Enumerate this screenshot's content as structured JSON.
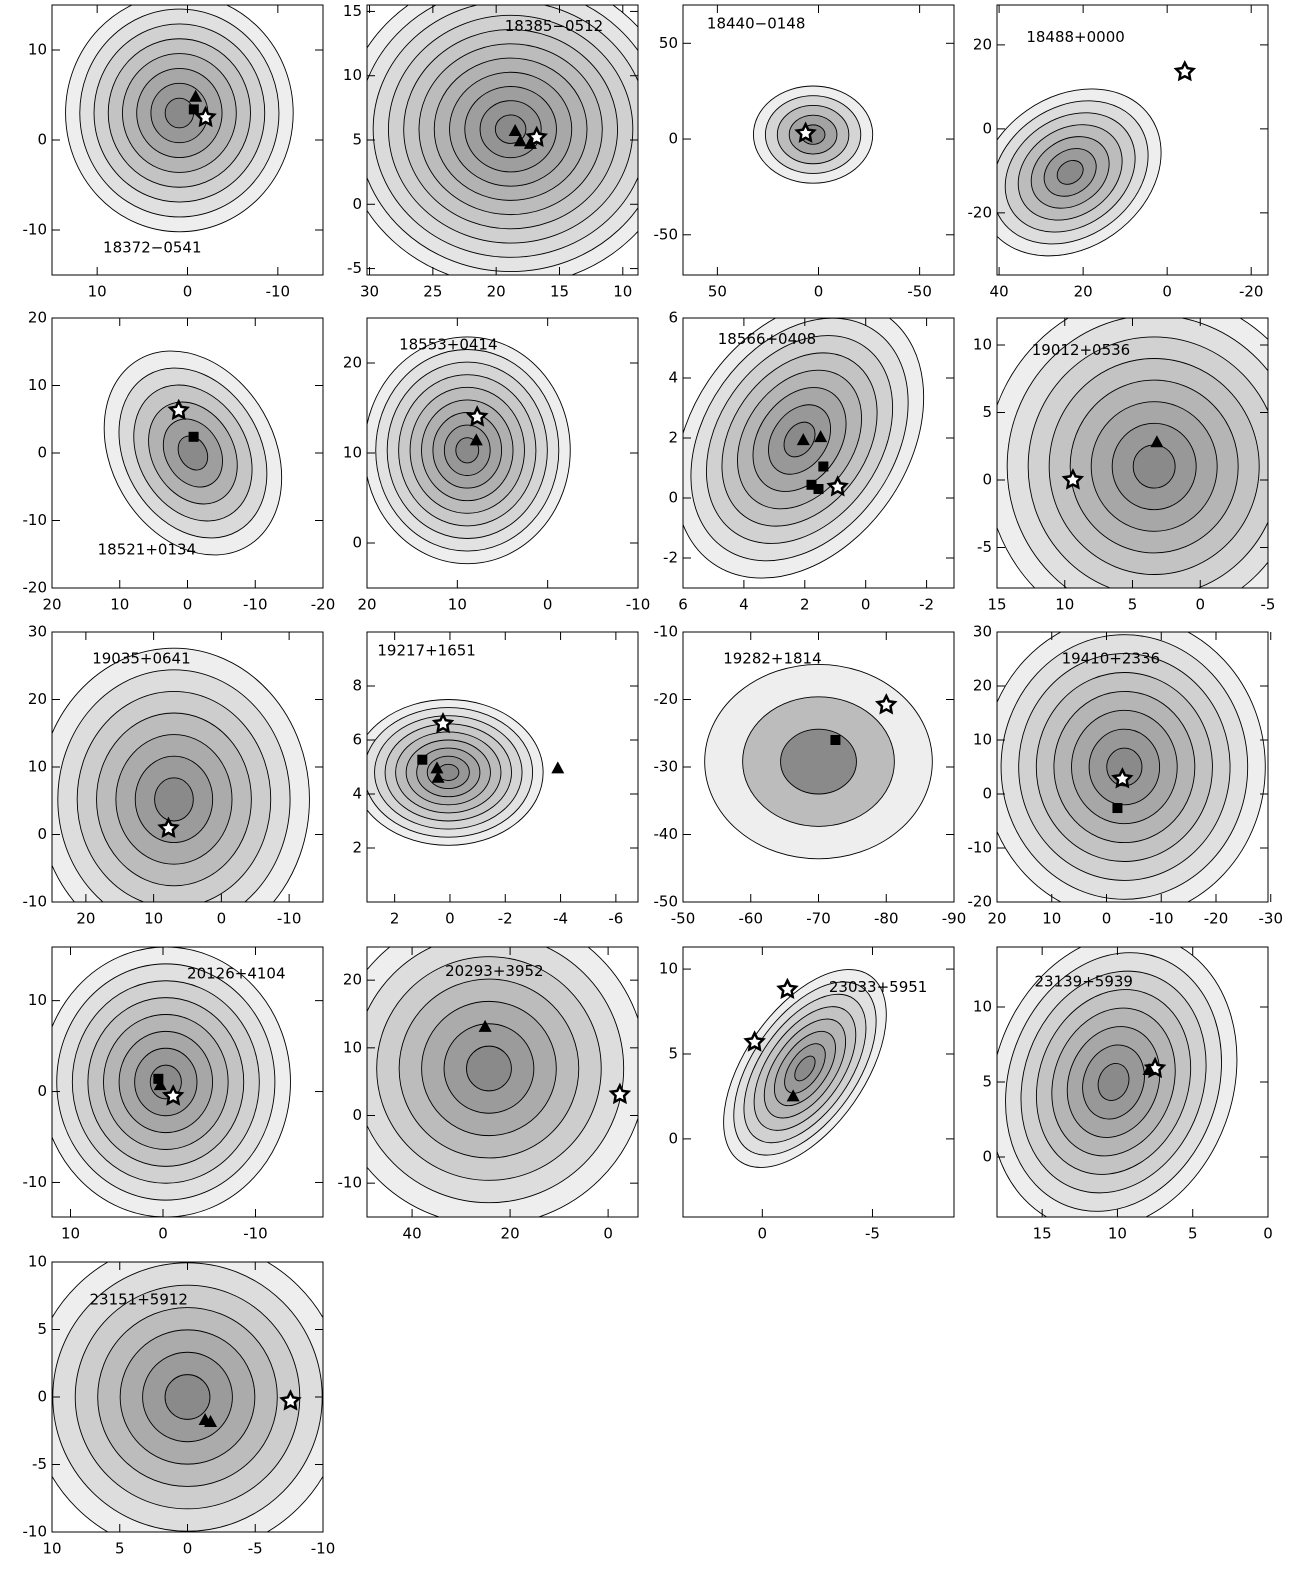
{
  "chart_data": [
    {
      "type": "contour",
      "title": "18372−0541",
      "xlim": [
        15,
        -15
      ],
      "ylim": [
        -15,
        15
      ],
      "xticks": [
        10,
        0,
        -10
      ],
      "yticks": [
        -10,
        0,
        10
      ],
      "series": [
        {
          "marker": "triangle",
          "x": [
            -0.9
          ],
          "y": [
            4.8
          ]
        },
        {
          "marker": "square",
          "x": [
            -0.7
          ],
          "y": [
            3.4
          ]
        },
        {
          "marker": "star",
          "x": [
            -2
          ],
          "y": [
            2.5
          ]
        }
      ]
    },
    {
      "type": "contour",
      "title": "18385−0512",
      "xlim": [
        30.2,
        8.8
      ],
      "ylim": [
        -5.5,
        15.5
      ],
      "xticks": [
        30,
        25,
        20,
        15,
        10
      ],
      "yticks": [
        -5,
        0,
        5,
        10,
        15
      ],
      "series": [
        {
          "marker": "triangle",
          "x": [
            18.5,
            18.1,
            17.3
          ],
          "y": [
            5.7,
            4.9,
            4.7
          ]
        },
        {
          "marker": "star",
          "x": [
            16.8
          ],
          "y": [
            5.2
          ]
        }
      ]
    },
    {
      "type": "contour",
      "title": "18440−0148",
      "xlim": [
        67,
        -67
      ],
      "ylim": [
        -71,
        70
      ],
      "xticks": [
        50,
        0,
        -50
      ],
      "yticks": [
        -50,
        0,
        50
      ],
      "series": [
        {
          "marker": "star",
          "x": [
            6.4
          ],
          "y": [
            3
          ]
        }
      ]
    },
    {
      "type": "contour",
      "title": "18488+0000",
      "xlim": [
        40.5,
        -24
      ],
      "ylim": [
        -34.8,
        29.5
      ],
      "xticks": [
        40,
        20,
        0,
        -20
      ],
      "yticks": [
        -20,
        0,
        20
      ],
      "series": [
        {
          "marker": "star",
          "x": [
            -4.2
          ],
          "y": [
            13.6
          ]
        }
      ]
    },
    {
      "type": "contour",
      "title": "18521+0134",
      "xlim": [
        20,
        -20
      ],
      "ylim": [
        -20,
        20
      ],
      "xticks": [
        20,
        10,
        0,
        -10,
        -20
      ],
      "yticks": [
        -20,
        -10,
        0,
        10,
        20
      ],
      "series": [
        {
          "marker": "star",
          "x": [
            1.3
          ],
          "y": [
            6.3
          ]
        },
        {
          "marker": "square",
          "x": [
            -0.9
          ],
          "y": [
            2.4
          ]
        }
      ]
    },
    {
      "type": "contour",
      "title": "18553+0414",
      "xlim": [
        20,
        -10
      ],
      "ylim": [
        -5,
        25
      ],
      "xticks": [
        20,
        10,
        0,
        -10
      ],
      "yticks": [
        0,
        10,
        20
      ],
      "series": [
        {
          "marker": "star",
          "x": [
            7.8
          ],
          "y": [
            14
          ]
        },
        {
          "marker": "triangle",
          "x": [
            7.9
          ],
          "y": [
            11.4
          ]
        }
      ]
    },
    {
      "type": "contour",
      "title": "18566+0408",
      "xlim": [
        6,
        -2.9
      ],
      "ylim": [
        -3,
        6
      ],
      "xticks": [
        6,
        4,
        2,
        0,
        -2
      ],
      "yticks": [
        -2,
        0,
        2,
        4,
        6
      ],
      "series": [
        {
          "marker": "triangle",
          "x": [
            2.05,
            1.48
          ],
          "y": [
            1.93,
            2.03
          ]
        },
        {
          "marker": "square",
          "x": [
            1.39,
            1.78,
            1.55
          ],
          "y": [
            1.05,
            0.44,
            0.3
          ]
        },
        {
          "marker": "star",
          "x": [
            0.92
          ],
          "y": [
            0.37
          ]
        }
      ]
    },
    {
      "type": "contour",
      "title": "19012+0536",
      "xlim": [
        15,
        -5
      ],
      "ylim": [
        -8,
        12
      ],
      "xticks": [
        15,
        10,
        5,
        0,
        -5
      ],
      "yticks": [
        -5,
        0,
        5,
        10
      ],
      "series": [
        {
          "marker": "star",
          "x": [
            9.4
          ],
          "y": [
            0
          ]
        },
        {
          "marker": "triangle",
          "x": [
            3.2
          ],
          "y": [
            2.8
          ]
        }
      ]
    },
    {
      "type": "contour",
      "title": "19035+0641",
      "xlim": [
        25,
        -15
      ],
      "ylim": [
        -10,
        30
      ],
      "xticks": [
        20,
        10,
        0,
        -10
      ],
      "yticks": [
        -10,
        0,
        10,
        20,
        30
      ],
      "series": [
        {
          "marker": "star",
          "x": [
            7.8
          ],
          "y": [
            0.9
          ]
        }
      ]
    },
    {
      "type": "contour",
      "title": "19217+1651",
      "xlim": [
        3,
        -6.8
      ],
      "ylim": [
        0,
        10
      ],
      "xticks": [
        2,
        0,
        -2,
        -4,
        -6
      ],
      "yticks": [
        2,
        4,
        6,
        8
      ],
      "series": [
        {
          "marker": "star",
          "x": [
            0.25
          ],
          "y": [
            6.6
          ]
        },
        {
          "marker": "square",
          "x": [
            1.0
          ],
          "y": [
            5.27
          ]
        },
        {
          "marker": "triangle",
          "x": [
            0.47,
            0.43,
            -3.9
          ],
          "y": [
            4.95,
            4.6,
            4.95
          ]
        }
      ]
    },
    {
      "type": "contour",
      "title": "19282+1814",
      "xlim": [
        -50,
        -90
      ],
      "ylim": [
        -50,
        -10
      ],
      "xticks": [
        -50,
        -60,
        -70,
        -80,
        -90
      ],
      "yticks": [
        -50,
        -40,
        -30,
        -20,
        -10
      ],
      "series": [
        {
          "marker": "star",
          "x": [
            -80
          ],
          "y": [
            -20.8
          ]
        },
        {
          "marker": "square",
          "x": [
            -72.5
          ],
          "y": [
            -26
          ]
        }
      ]
    },
    {
      "type": "contour",
      "title": "19410+2336",
      "xlim": [
        20,
        -29.5
      ],
      "ylim": [
        -20,
        30
      ],
      "xticks": [
        20,
        10,
        0,
        -10,
        -20,
        -30
      ],
      "yticks": [
        -20,
        -10,
        0,
        10,
        20,
        30
      ],
      "series": [
        {
          "marker": "star",
          "x": [
            -2.9
          ],
          "y": [
            2.8
          ]
        },
        {
          "marker": "square",
          "x": [
            -2
          ],
          "y": [
            -2.6
          ]
        }
      ]
    },
    {
      "type": "contour",
      "title": "20126+4104",
      "xlim": [
        12,
        -17.3
      ],
      "ylim": [
        -13.8,
        15.9
      ],
      "xticks": [
        10,
        0,
        -10
      ],
      "yticks": [
        -10,
        0,
        10
      ],
      "series": [
        {
          "marker": "square",
          "x": [
            0.5
          ],
          "y": [
            1.4
          ]
        },
        {
          "marker": "triangle",
          "x": [
            0.3
          ],
          "y": [
            0.7
          ]
        },
        {
          "marker": "star",
          "x": [
            -1.1
          ],
          "y": [
            -0.5
          ]
        }
      ]
    },
    {
      "type": "contour",
      "title": "20293+3952",
      "xlim": [
        49.2,
        -6.1
      ],
      "ylim": [
        -15,
        24.9
      ],
      "xticks": [
        40,
        20,
        0
      ],
      "yticks": [
        -10,
        0,
        10,
        20
      ],
      "series": [
        {
          "marker": "triangle",
          "x": [
            25.1
          ],
          "y": [
            13.1
          ]
        },
        {
          "marker": "star",
          "x": [
            -2.4
          ],
          "y": [
            3.1
          ]
        }
      ]
    },
    {
      "type": "contour",
      "title": "23033+5951",
      "xlim": [
        3.6,
        -8.7
      ],
      "ylim": [
        -4.6,
        11.3
      ],
      "xticks": [
        0,
        -5
      ],
      "yticks": [
        0,
        5,
        10
      ],
      "series": [
        {
          "marker": "star",
          "x": [
            -1.14,
            0.35
          ],
          "y": [
            8.8,
            5.7
          ]
        },
        {
          "marker": "triangle",
          "x": [
            -1.4
          ],
          "y": [
            2.5
          ]
        }
      ]
    },
    {
      "type": "contour",
      "title": "23139+5939",
      "xlim": [
        18,
        0
      ],
      "ylim": [
        -4,
        14
      ],
      "xticks": [
        15,
        10,
        5,
        0
      ],
      "yticks": [
        0,
        5,
        10
      ],
      "series": [
        {
          "marker": "star",
          "x": [
            7.5
          ],
          "y": [
            5.9
          ]
        },
        {
          "marker": "triangle",
          "x": [
            7.9
          ],
          "y": [
            5.8
          ]
        }
      ]
    },
    {
      "type": "contour",
      "title": "23151+5912",
      "xlim": [
        10,
        -10
      ],
      "ylim": [
        -10,
        10
      ],
      "xticks": [
        10,
        5,
        0,
        -5,
        -10
      ],
      "yticks": [
        -10,
        -5,
        0,
        5,
        10
      ],
      "series": [
        {
          "marker": "star",
          "x": [
            -7.6
          ],
          "y": [
            -0.3
          ]
        },
        {
          "marker": "triangle",
          "x": [
            -1.3,
            -1.7
          ],
          "y": [
            -1.7,
            -1.85
          ]
        }
      ]
    }
  ]
}
